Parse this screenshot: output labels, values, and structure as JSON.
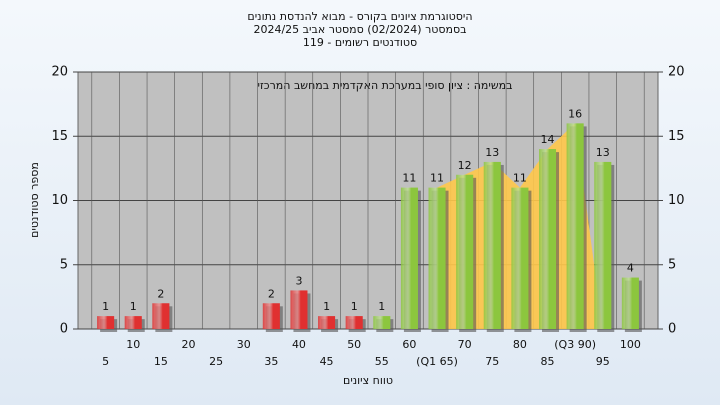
{
  "chart_data": {
    "type": "bar",
    "title": "היסטוגרמת ציונים בקורס - מבוא להנדסת נתונים",
    "subtitle": "בסמסטר  (02/2024)  סמסטר אביב 2024/25",
    "subtitle2": "סטודנטים רשומים - 119",
    "annotation": "במשימה : ציון סופי במערכת האקדמית במחשב המרכזי",
    "x_label": "טווח ציונים",
    "y_label": "מספר סטודנטים",
    "categories": [
      "5",
      "10",
      "15",
      "20",
      "25",
      "30",
      "35",
      "40",
      "45",
      "50",
      "55",
      "60",
      "(Q1 65)",
      "70",
      "75",
      "80",
      "85",
      "(Q3 90)",
      "95",
      "100"
    ],
    "values": [
      1,
      1,
      2,
      0,
      0,
      0,
      2,
      3,
      1,
      1,
      1,
      11,
      11,
      12,
      13,
      11,
      14,
      16,
      13,
      4
    ],
    "colors": [
      "#e03030",
      "#e03030",
      "#e03030",
      "#e03030",
      "#e03030",
      "#e03030",
      "#e03030",
      "#e03030",
      "#e03030",
      "#e03030",
      "#8cc63f",
      "#8cc63f",
      "#8cc63f",
      "#8cc63f",
      "#8cc63f",
      "#8cc63f",
      "#8cc63f",
      "#8cc63f",
      "#8cc63f",
      "#8cc63f"
    ],
    "highlight_color": "#ffc84a",
    "ylim": [
      0,
      20
    ],
    "yticks": [
      0,
      5,
      10,
      15,
      20
    ],
    "grid": true
  }
}
